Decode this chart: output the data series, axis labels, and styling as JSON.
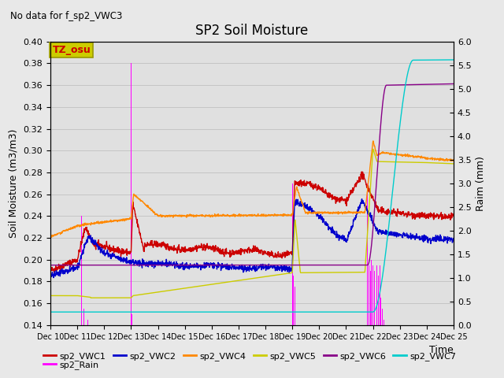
{
  "title": "SP2 Soil Moisture",
  "subtitle": "No data for f_sp2_VWC3",
  "xlabel": "Time",
  "ylabel_left": "Soil Moisture (m3/m3)",
  "ylabel_right": "Raim (mm)",
  "ylim_left": [
    0.14,
    0.4
  ],
  "ylim_right": [
    0.0,
    6.0
  ],
  "yticks_left": [
    0.14,
    0.16,
    0.18,
    0.2,
    0.22,
    0.24,
    0.26,
    0.28,
    0.3,
    0.32,
    0.34,
    0.36,
    0.38,
    0.4
  ],
  "yticks_right": [
    0.0,
    0.5,
    1.0,
    1.5,
    2.0,
    2.5,
    3.0,
    3.5,
    4.0,
    4.5,
    5.0,
    5.5,
    6.0
  ],
  "xtick_labels": [
    "Dec 10",
    "Dec 11",
    "Dec 12",
    "Dec 13",
    "Dec 14",
    "Dec 15",
    "Dec 16",
    "Dec 17",
    "Dec 18",
    "Dec 19",
    "Dec 20",
    "Dec 21",
    "Dec 22",
    "Dec 23",
    "Dec 24",
    "Dec 25"
  ],
  "colors": {
    "VWC1": "#cc0000",
    "VWC2": "#0000cc",
    "VWC4": "#ff8800",
    "VWC5": "#cccc00",
    "VWC6": "#880088",
    "VWC7": "#00cccc",
    "Rain": "#ff00ff"
  },
  "tz_osu_box_facecolor": "#cccc00",
  "tz_osu_text_color": "#cc0000",
  "fig_facecolor": "#e8e8e8",
  "plot_facecolor": "#e0e0e0"
}
